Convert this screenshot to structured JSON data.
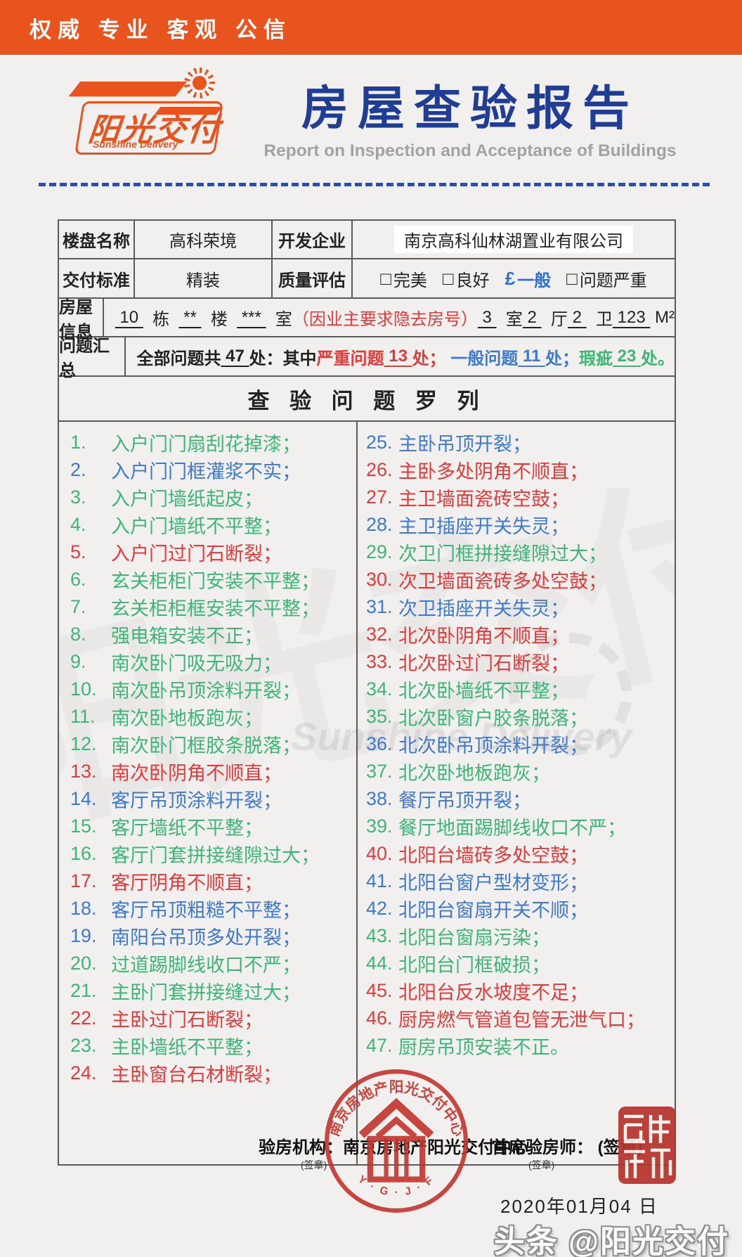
{
  "colors": {
    "severe": "#e03c3c",
    "general": "#3e79cc",
    "defect": "#3eb576",
    "accent_orange": "#e9531d",
    "title_blue": "#203d96",
    "stamp_red": "#c4342e"
  },
  "topbar": {
    "slogan": "权威  专业  客观  公信"
  },
  "brand": {
    "logo_text": "阳光交付",
    "logo_subtext": "Sunshine Delivery",
    "title": "房屋查验报告",
    "subtitle": "Report on Inspection and Acceptance of Buildings"
  },
  "info": {
    "r1c1": "楼盘名称",
    "r1v1": "高科荣境",
    "r1c2": "开发企业",
    "r1v2": "南京高科仙林湖置业有限公司",
    "r2c1": "交付标准",
    "r2v1": "精装",
    "r2c2": "质量评估",
    "quality_options": [
      {
        "box": "□",
        "label": "完美",
        "state": "unchecked"
      },
      {
        "box": "□",
        "label": "良好",
        "state": "unchecked"
      },
      {
        "box": "£",
        "label": "一般",
        "state": "checked"
      },
      {
        "box": "□",
        "label": "问题严重",
        "state": "unchecked"
      }
    ],
    "r3c1": "房屋信息",
    "house_tokens": [
      {
        "text": " 10 ",
        "cls": "u"
      },
      {
        "text": "  栋  ",
        "cls": "t"
      },
      {
        "text": " ** ",
        "cls": "u"
      },
      {
        "text": "  楼  ",
        "cls": "t"
      },
      {
        "text": " *** ",
        "cls": "u"
      },
      {
        "text": "  室",
        "cls": "t"
      },
      {
        "text": "（因业主要求隐去房号）",
        "cls": "note"
      },
      {
        "text": " 3 ",
        "cls": "u"
      },
      {
        "text": "  室",
        "cls": "t"
      },
      {
        "text": " 2 ",
        "cls": "u"
      },
      {
        "text": "  厅",
        "cls": "t"
      },
      {
        "text": " 2 ",
        "cls": "u"
      },
      {
        "text": "  卫",
        "cls": "t"
      },
      {
        "text": " 123 ",
        "cls": "u"
      },
      {
        "text": " M²",
        "cls": "t"
      }
    ],
    "r4c1": "问题汇总",
    "summary_tokens": [
      {
        "text": "全部问题共",
        "cls": "t"
      },
      {
        "text": " 47 ",
        "cls": "u"
      },
      {
        "text": "处：其中",
        "cls": "t"
      },
      {
        "text": "严重问题",
        "cls": "severe"
      },
      {
        "text": " 13 ",
        "cls": "u severe"
      },
      {
        "text": "处；",
        "cls": "severe"
      },
      {
        "text": " 一般问题",
        "cls": "general t"
      },
      {
        "text": " 11 ",
        "cls": "u general"
      },
      {
        "text": "处；",
        "cls": "general"
      },
      {
        "text": "瑕疵",
        "cls": "defect"
      },
      {
        "text": " 23 ",
        "cls": "u defect"
      },
      {
        "text": "处。",
        "cls": "defect"
      }
    ]
  },
  "section_title": "查 验 问 题 罗 列",
  "problems_left": [
    {
      "n": 1,
      "text": "入户门门扇刮花掉漆；",
      "level": "defect"
    },
    {
      "n": 2,
      "text": "入户门门框灌浆不实；",
      "level": "general"
    },
    {
      "n": 3,
      "text": "入户门墙纸起皮；",
      "level": "defect"
    },
    {
      "n": 4,
      "text": "入户门墙纸不平整；",
      "level": "defect"
    },
    {
      "n": 5,
      "text": "入户门过门石断裂；",
      "level": "severe"
    },
    {
      "n": 6,
      "text": "玄关柜柜门安装不平整；",
      "level": "defect"
    },
    {
      "n": 7,
      "text": "玄关柜柜框安装不平整；",
      "level": "defect"
    },
    {
      "n": 8,
      "text": "强电箱安装不正；",
      "level": "defect"
    },
    {
      "n": 9,
      "text": "南次卧门吸无吸力；",
      "level": "defect"
    },
    {
      "n": 10,
      "text": "南次卧吊顶涂料开裂；",
      "level": "defect"
    },
    {
      "n": 11,
      "text": "南次卧地板跑灰；",
      "level": "defect"
    },
    {
      "n": 12,
      "text": "南次卧门框胶条脱落；",
      "level": "defect"
    },
    {
      "n": 13,
      "text": "南次卧阴角不顺直；",
      "level": "severe"
    },
    {
      "n": 14,
      "text": "客厅吊顶涂料开裂；",
      "level": "general"
    },
    {
      "n": 15,
      "text": "客厅墙纸不平整；",
      "level": "defect"
    },
    {
      "n": 16,
      "text": "客厅门套拼接缝隙过大；",
      "level": "defect"
    },
    {
      "n": 17,
      "text": "客厅阴角不顺直；",
      "level": "severe"
    },
    {
      "n": 18,
      "text": "客厅吊顶粗糙不平整；",
      "level": "general"
    },
    {
      "n": 19,
      "text": "南阳台吊顶多处开裂；",
      "level": "general"
    },
    {
      "n": 20,
      "text": "过道踢脚线收口不严；",
      "level": "defect"
    },
    {
      "n": 21,
      "text": "主卧门套拼接缝过大；",
      "level": "defect"
    },
    {
      "n": 22,
      "text": "主卧过门石断裂；",
      "level": "severe"
    },
    {
      "n": 23,
      "text": "主卧墙纸不平整；",
      "level": "defect"
    },
    {
      "n": 24,
      "text": "主卧窗台石材断裂；",
      "level": "severe"
    }
  ],
  "problems_right": [
    {
      "n": 25,
      "text": "主卧吊顶开裂；",
      "level": "general"
    },
    {
      "n": 26,
      "text": "主卧多处阴角不顺直；",
      "level": "severe"
    },
    {
      "n": 27,
      "text": "主卫墙面瓷砖空鼓；",
      "level": "severe"
    },
    {
      "n": 28,
      "text": "主卫插座开关失灵；",
      "level": "general"
    },
    {
      "n": 29,
      "text": "次卫门框拼接缝隙过大；",
      "level": "defect"
    },
    {
      "n": 30,
      "text": "次卫墙面瓷砖多处空鼓；",
      "level": "severe"
    },
    {
      "n": 31,
      "text": "次卫插座开关失灵；",
      "level": "general"
    },
    {
      "n": 32,
      "text": "北次卧阴角不顺直；",
      "level": "severe"
    },
    {
      "n": 33,
      "text": "北次卧过门石断裂；",
      "level": "severe"
    },
    {
      "n": 34,
      "text": "北次卧墙纸不平整；",
      "level": "defect"
    },
    {
      "n": 35,
      "text": "北次卧窗户胶条脱落；",
      "level": "defect"
    },
    {
      "n": 36,
      "text": "北次卧吊顶涂料开裂；",
      "level": "general"
    },
    {
      "n": 37,
      "text": "北次卧地板跑灰；",
      "level": "defect"
    },
    {
      "n": 38,
      "text": "餐厅吊顶开裂；",
      "level": "general"
    },
    {
      "n": 39,
      "text": "餐厅地面踢脚线收口不严；",
      "level": "defect"
    },
    {
      "n": 40,
      "text": "北阳台墙砖多处空鼓；",
      "level": "severe"
    },
    {
      "n": 41,
      "text": "北阳台窗户型材变形；",
      "level": "general"
    },
    {
      "n": 42,
      "text": "北阳台窗扇开关不顺；",
      "level": "general"
    },
    {
      "n": 43,
      "text": "北阳台窗扇污染；",
      "level": "defect"
    },
    {
      "n": 44,
      "text": "北阳台门框破损；",
      "level": "defect"
    },
    {
      "n": 45,
      "text": "北阳台反水坡度不足；",
      "level": "severe"
    },
    {
      "n": 46,
      "text": "厨房燃气管道包管无泄气口；",
      "level": "severe"
    },
    {
      "n": 47,
      "text": "厨房吊顶安装不正。",
      "level": "defect"
    }
  ],
  "footer": {
    "agency_label": "验房机构：南京房地产阳光交付中心",
    "agency_note": "(签章)",
    "chief_label": "首席验房师：  (签章)",
    "chief_note": "(签章)",
    "date": "2020年01月04 日",
    "stamp_arc_text": "南京房地产阳光交付中心",
    "stamp_bottom_text": "Y · G · J · F",
    "toutiao": "头条 @阳光交付"
  },
  "watermark": {
    "cn": "阳光交付",
    "en": "Sunshine Delivery"
  }
}
